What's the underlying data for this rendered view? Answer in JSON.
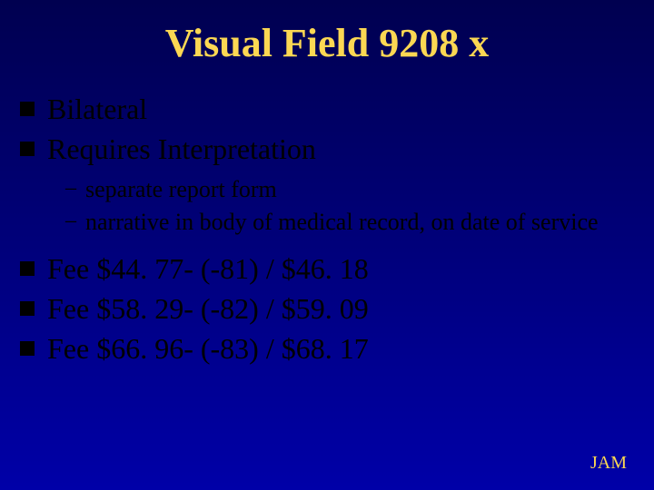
{
  "title": "Visual Field 9208 x",
  "bullets_top": [
    "Bilateral",
    "Requires Interpretation"
  ],
  "sub_bullets": [
    "separate report form",
    "narrative in body of medical record, on date of service"
  ],
  "bullets_bottom": [
    "Fee $44. 77- (-81) / $46. 18",
    "Fee $58. 29- (-82) / $59. 09",
    "Fee $66. 96- (-83) / $68. 17"
  ],
  "footer": "JAM",
  "colors": {
    "title": "#fbd753",
    "footer": "#fbd753",
    "body_text": "#000000",
    "bullet_square": "#000000",
    "bg_top": "#000050",
    "bg_mid": "#00007a",
    "bg_bottom": "#0000a8"
  },
  "fontsizes": {
    "title": 44,
    "l1": 32,
    "l2": 26,
    "footer": 20
  }
}
